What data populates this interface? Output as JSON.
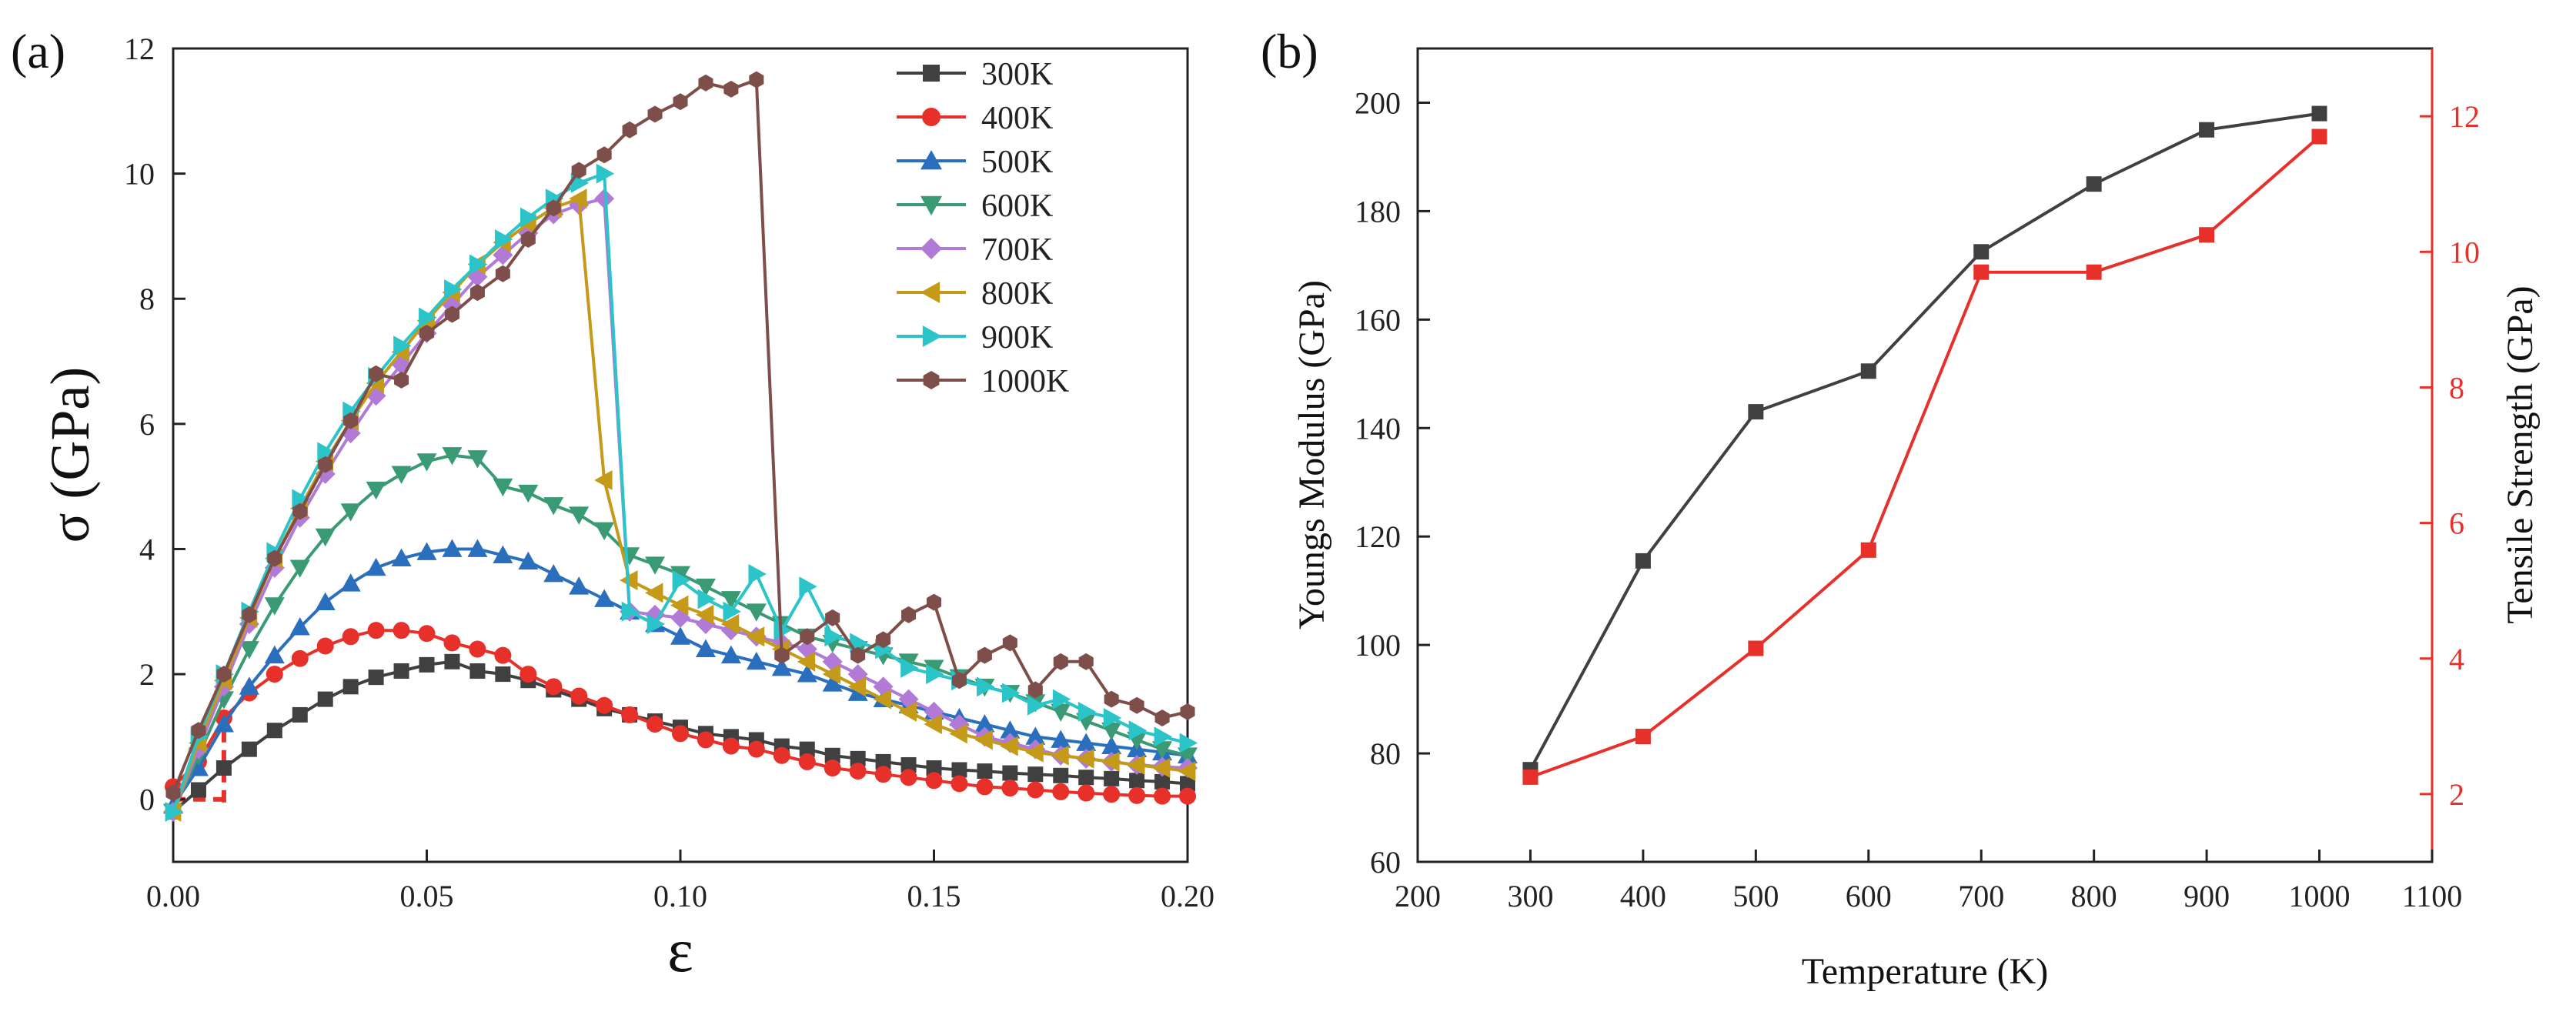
{
  "chart_data": [
    {
      "panel_label": "(a)",
      "type": "line",
      "xlabel": "ε",
      "ylabel": "σ (GPa)",
      "xlim": [
        0,
        0.2
      ],
      "ylim": [
        -1,
        12
      ],
      "x_ticks": [
        "0.00",
        "0.05",
        "0.10",
        "0.15",
        "0.20"
      ],
      "x_tick_values": [
        0,
        0.05,
        0.1,
        0.15,
        0.2
      ],
      "y_ticks": [
        "0",
        "2",
        "4",
        "6",
        "8",
        "10",
        "12"
      ],
      "y_tick_values": [
        0,
        2,
        4,
        6,
        8,
        10,
        12
      ],
      "legend_position": "top-right",
      "series": [
        {
          "name": "300K",
          "color": "#404040",
          "marker": "square",
          "x": [
            0,
            0.005,
            0.01,
            0.015,
            0.02,
            0.025,
            0.03,
            0.035,
            0.04,
            0.045,
            0.05,
            0.055,
            0.06,
            0.065,
            0.07,
            0.075,
            0.08,
            0.085,
            0.09,
            0.095,
            0.1,
            0.105,
            0.11,
            0.115,
            0.12,
            0.125,
            0.13,
            0.135,
            0.14,
            0.145,
            0.15,
            0.155,
            0.16,
            0.165,
            0.17,
            0.175,
            0.18,
            0.185,
            0.19,
            0.195,
            0.2
          ],
          "y": [
            -0.2,
            0.15,
            0.5,
            0.8,
            1.1,
            1.35,
            1.6,
            1.8,
            1.95,
            2.05,
            2.15,
            2.2,
            2.05,
            2.0,
            1.9,
            1.75,
            1.6,
            1.45,
            1.35,
            1.25,
            1.15,
            1.05,
            1.0,
            0.95,
            0.85,
            0.8,
            0.7,
            0.65,
            0.6,
            0.55,
            0.5,
            0.47,
            0.45,
            0.42,
            0.4,
            0.38,
            0.35,
            0.33,
            0.3,
            0.28,
            0.25
          ]
        },
        {
          "name": "400K",
          "color": "#e8302a",
          "marker": "circle",
          "x": [
            0,
            0.005,
            0.01,
            0.015,
            0.02,
            0.025,
            0.03,
            0.035,
            0.04,
            0.045,
            0.05,
            0.055,
            0.06,
            0.065,
            0.07,
            0.075,
            0.08,
            0.085,
            0.09,
            0.095,
            0.1,
            0.105,
            0.11,
            0.115,
            0.12,
            0.125,
            0.13,
            0.135,
            0.14,
            0.145,
            0.15,
            0.155,
            0.16,
            0.165,
            0.17,
            0.175,
            0.18,
            0.185,
            0.19,
            0.195,
            0.2
          ],
          "y": [
            0.2,
            0.6,
            1.3,
            1.7,
            2.0,
            2.25,
            2.45,
            2.6,
            2.7,
            2.7,
            2.65,
            2.5,
            2.4,
            2.3,
            2.0,
            1.8,
            1.65,
            1.5,
            1.35,
            1.2,
            1.05,
            0.95,
            0.85,
            0.8,
            0.7,
            0.6,
            0.5,
            0.45,
            0.4,
            0.35,
            0.3,
            0.25,
            0.2,
            0.18,
            0.15,
            0.12,
            0.1,
            0.08,
            0.06,
            0.05,
            0.05
          ]
        },
        {
          "name": "500K",
          "color": "#2a6ebe",
          "marker": "triangle-up",
          "x": [
            0,
            0.005,
            0.01,
            0.015,
            0.02,
            0.025,
            0.03,
            0.035,
            0.04,
            0.045,
            0.05,
            0.055,
            0.06,
            0.065,
            0.07,
            0.075,
            0.08,
            0.085,
            0.09,
            0.095,
            0.1,
            0.105,
            0.11,
            0.115,
            0.12,
            0.125,
            0.13,
            0.135,
            0.14,
            0.145,
            0.15,
            0.155,
            0.16,
            0.165,
            0.17,
            0.175,
            0.18,
            0.185,
            0.19,
            0.195,
            0.2
          ],
          "y": [
            -0.1,
            0.5,
            1.2,
            1.8,
            2.3,
            2.75,
            3.15,
            3.45,
            3.7,
            3.85,
            3.95,
            4.0,
            4.0,
            3.9,
            3.8,
            3.6,
            3.4,
            3.2,
            3.0,
            2.8,
            2.6,
            2.4,
            2.3,
            2.2,
            2.1,
            2.0,
            1.85,
            1.7,
            1.6,
            1.5,
            1.4,
            1.3,
            1.2,
            1.1,
            1.0,
            0.95,
            0.9,
            0.85,
            0.8,
            0.75,
            0.7
          ]
        },
        {
          "name": "600K",
          "color": "#3a9a74",
          "marker": "triangle-down",
          "x": [
            0,
            0.005,
            0.01,
            0.015,
            0.02,
            0.025,
            0.03,
            0.035,
            0.04,
            0.045,
            0.05,
            0.055,
            0.06,
            0.065,
            0.07,
            0.075,
            0.08,
            0.085,
            0.09,
            0.095,
            0.1,
            0.105,
            0.11,
            0.115,
            0.12,
            0.125,
            0.13,
            0.135,
            0.14,
            0.145,
            0.15,
            0.155,
            0.16,
            0.165,
            0.17,
            0.175,
            0.18,
            0.185,
            0.19,
            0.195,
            0.2
          ],
          "y": [
            -0.2,
            0.7,
            1.6,
            2.4,
            3.1,
            3.7,
            4.2,
            4.6,
            4.95,
            5.2,
            5.4,
            5.5,
            5.45,
            5.0,
            4.9,
            4.7,
            4.55,
            4.3,
            3.9,
            3.75,
            3.6,
            3.4,
            3.2,
            3.0,
            2.8,
            2.6,
            2.5,
            2.4,
            2.3,
            2.2,
            2.1,
            1.95,
            1.8,
            1.7,
            1.55,
            1.4,
            1.25,
            1.1,
            0.95,
            0.8,
            0.7
          ]
        },
        {
          "name": "700K",
          "color": "#b07ad6",
          "marker": "diamond",
          "x": [
            0,
            0.005,
            0.01,
            0.015,
            0.02,
            0.025,
            0.03,
            0.035,
            0.04,
            0.045,
            0.05,
            0.055,
            0.06,
            0.065,
            0.07,
            0.075,
            0.08,
            0.085,
            0.09,
            0.095,
            0.1,
            0.105,
            0.11,
            0.115,
            0.12,
            0.125,
            0.13,
            0.135,
            0.14,
            0.145,
            0.15,
            0.155,
            0.16,
            0.165,
            0.17,
            0.175,
            0.18,
            0.185,
            0.19,
            0.195,
            0.2
          ],
          "y": [
            -0.2,
            0.8,
            1.8,
            2.8,
            3.7,
            4.5,
            5.2,
            5.85,
            6.45,
            6.95,
            7.45,
            7.9,
            8.35,
            8.7,
            9.05,
            9.35,
            9.5,
            9.6,
            3.0,
            2.95,
            2.9,
            2.8,
            2.7,
            2.6,
            2.5,
            2.4,
            2.2,
            2.0,
            1.8,
            1.6,
            1.4,
            1.2,
            1.0,
            0.9,
            0.8,
            0.7,
            0.65,
            0.6,
            0.55,
            0.52,
            0.5
          ]
        },
        {
          "name": "800K",
          "color": "#c49a18",
          "marker": "triangle-left",
          "x": [
            0,
            0.005,
            0.01,
            0.015,
            0.02,
            0.025,
            0.03,
            0.035,
            0.04,
            0.045,
            0.05,
            0.055,
            0.06,
            0.065,
            0.07,
            0.075,
            0.08,
            0.085,
            0.09,
            0.095,
            0.1,
            0.105,
            0.11,
            0.115,
            0.12,
            0.125,
            0.13,
            0.135,
            0.14,
            0.145,
            0.15,
            0.155,
            0.16,
            0.165,
            0.17,
            0.175,
            0.18,
            0.185,
            0.19,
            0.195,
            0.2
          ],
          "y": [
            -0.2,
            0.9,
            1.9,
            2.9,
            3.85,
            4.65,
            5.4,
            6.05,
            6.65,
            7.15,
            7.65,
            8.1,
            8.55,
            8.9,
            9.2,
            9.45,
            9.6,
            5.1,
            3.5,
            3.3,
            3.1,
            2.95,
            2.8,
            2.6,
            2.4,
            2.2,
            2.0,
            1.8,
            1.6,
            1.4,
            1.2,
            1.05,
            0.95,
            0.85,
            0.75,
            0.7,
            0.65,
            0.6,
            0.55,
            0.5,
            0.45
          ]
        },
        {
          "name": "900K",
          "color": "#2bc4c8",
          "marker": "triangle-right",
          "x": [
            0,
            0.005,
            0.01,
            0.015,
            0.02,
            0.025,
            0.03,
            0.035,
            0.04,
            0.045,
            0.05,
            0.055,
            0.06,
            0.065,
            0.07,
            0.075,
            0.08,
            0.085,
            0.09,
            0.095,
            0.1,
            0.105,
            0.11,
            0.115,
            0.12,
            0.125,
            0.13,
            0.135,
            0.14,
            0.145,
            0.15,
            0.155,
            0.16,
            0.165,
            0.17,
            0.175,
            0.18,
            0.185,
            0.19,
            0.195,
            0.2
          ],
          "y": [
            -0.2,
            1.0,
            2.0,
            3.0,
            3.95,
            4.8,
            5.55,
            6.2,
            6.75,
            7.25,
            7.7,
            8.15,
            8.55,
            8.95,
            9.3,
            9.6,
            9.85,
            10.0,
            3.0,
            2.8,
            3.5,
            3.2,
            3.0,
            3.6,
            2.7,
            3.4,
            2.6,
            2.5,
            2.4,
            2.1,
            2.0,
            1.9,
            1.8,
            1.7,
            1.5,
            1.6,
            1.4,
            1.3,
            1.1,
            1.0,
            0.9
          ]
        },
        {
          "name": "1000K",
          "color": "#7e4f4a",
          "marker": "hexagon",
          "x": [
            0,
            0.005,
            0.01,
            0.015,
            0.02,
            0.025,
            0.03,
            0.035,
            0.04,
            0.045,
            0.05,
            0.055,
            0.06,
            0.065,
            0.07,
            0.075,
            0.08,
            0.085,
            0.09,
            0.095,
            0.1,
            0.105,
            0.11,
            0.115,
            0.12,
            0.125,
            0.13,
            0.135,
            0.14,
            0.145,
            0.15,
            0.155,
            0.16,
            0.165,
            0.17,
            0.175,
            0.18,
            0.185,
            0.19,
            0.195,
            0.2
          ],
          "y": [
            0.1,
            1.1,
            2.0,
            2.95,
            3.85,
            4.6,
            5.35,
            6.05,
            6.8,
            6.7,
            7.45,
            7.75,
            8.1,
            8.4,
            8.95,
            9.45,
            10.05,
            10.3,
            10.7,
            10.95,
            11.15,
            11.45,
            11.35,
            11.5,
            2.3,
            2.6,
            2.9,
            2.3,
            2.55,
            2.95,
            3.15,
            1.9,
            2.3,
            2.5,
            1.75,
            2.2,
            2.2,
            1.6,
            1.5,
            1.3,
            1.4
          ]
        }
      ],
      "annotation": "red dashed vertical marker near ε = 0.01"
    },
    {
      "panel_label": "(b)",
      "type": "line",
      "xlabel": "Temperature (K)",
      "ylabel": "Youngs Modulus (GPa)",
      "y2label": "Tensile Strength (GPa)",
      "xlim": [
        200,
        1100
      ],
      "ylim": [
        60,
        210
      ],
      "y2lim": [
        1,
        13
      ],
      "x_ticks": [
        "200",
        "300",
        "400",
        "500",
        "600",
        "700",
        "800",
        "900",
        "1000",
        "1100"
      ],
      "x_tick_values": [
        200,
        300,
        400,
        500,
        600,
        700,
        800,
        900,
        1000,
        1100
      ],
      "y_ticks": [
        "60",
        "80",
        "100",
        "120",
        "140",
        "160",
        "180",
        "200"
      ],
      "y_tick_values": [
        60,
        80,
        100,
        120,
        140,
        160,
        180,
        200
      ],
      "y2_ticks": [
        "2",
        "4",
        "6",
        "8",
        "10",
        "12"
      ],
      "y2_tick_values": [
        2,
        4,
        6,
        8,
        10,
        12
      ],
      "series": [
        {
          "name": "Youngs Modulus",
          "axis": "left",
          "color": "#404040",
          "marker": "square",
          "x": [
            300,
            400,
            500,
            600,
            700,
            800,
            900,
            1000
          ],
          "y": [
            77,
            115.5,
            143,
            150.5,
            172.5,
            185,
            195,
            198
          ]
        },
        {
          "name": "Tensile Strength",
          "axis": "right",
          "color": "#e8302a",
          "marker": "square",
          "x": [
            300,
            400,
            500,
            600,
            700,
            800,
            900,
            1000
          ],
          "y": [
            2.25,
            2.85,
            4.15,
            5.6,
            9.7,
            9.7,
            10.25,
            11.7
          ]
        }
      ]
    }
  ]
}
